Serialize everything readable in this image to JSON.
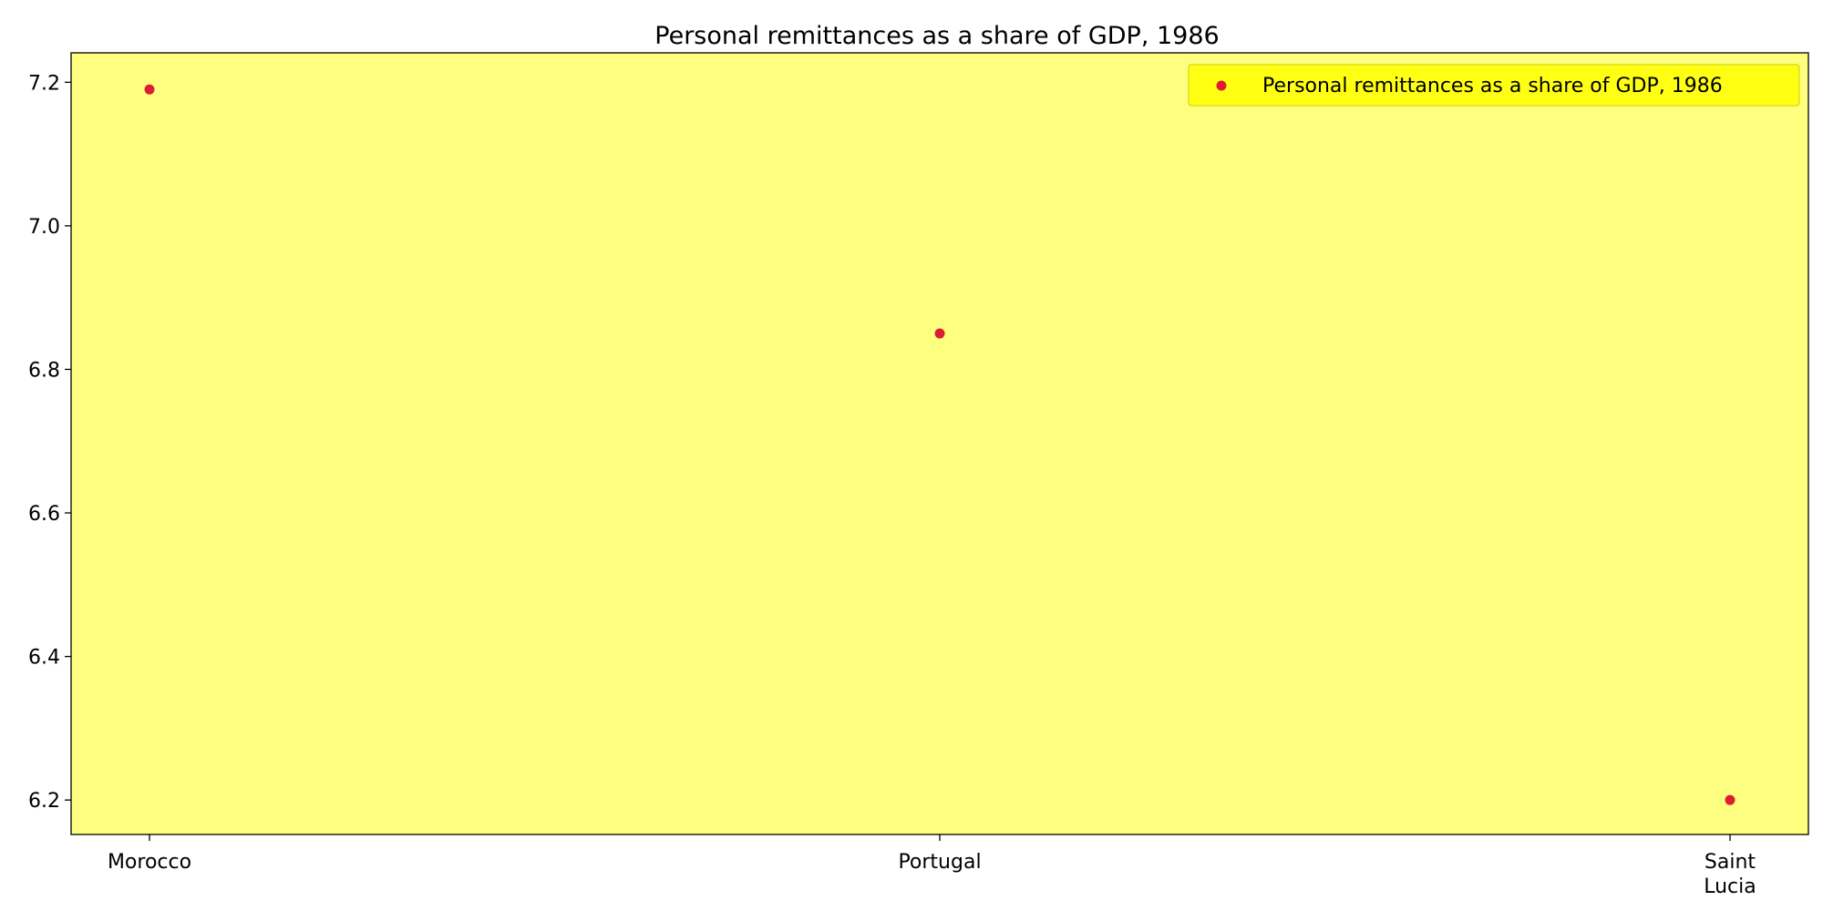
{
  "chart_data": {
    "type": "scatter",
    "title": "Personal remittances as a share of GDP, 1986",
    "categories": [
      "Morocco",
      "Portugal",
      "Saint\nLucia"
    ],
    "series": [
      {
        "name": "Personal remittances as a share of GDP, 1986",
        "values": [
          7.19,
          6.85,
          6.2
        ]
      }
    ],
    "xlabel": "",
    "ylabel": "",
    "ylim": [
      6.152,
      7.241
    ],
    "yticks": [
      "6.2",
      "6.4",
      "6.6",
      "6.8",
      "7.0",
      "7.2"
    ],
    "grid": false,
    "legend_position": "top-right",
    "colors": {
      "plot_background": "#ffff7f",
      "point": "#dc1e32",
      "legend_background": "#ffff14",
      "axis": "#000000"
    }
  }
}
